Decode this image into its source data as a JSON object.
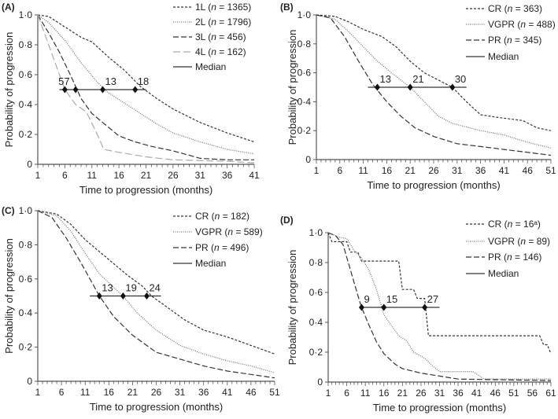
{
  "chart_data": [
    {
      "type": "line",
      "panel": "(A)",
      "xlabel": "Time to progression (months)",
      "ylabel": "Probability of progression",
      "xlim": [
        1,
        41
      ],
      "ylim": [
        0,
        1
      ],
      "xticks": [
        1,
        6,
        11,
        16,
        21,
        26,
        31,
        36,
        41
      ],
      "yticks": [
        "0",
        "0·2",
        "0·4",
        "0·6",
        "0·8",
        "1·0"
      ],
      "series": [
        {
          "name": "1L",
          "n": "1365",
          "style": "short-dash",
          "color": "#333333",
          "points": [
            [
              1,
              1
            ],
            [
              3,
              0.99
            ],
            [
              6,
              0.92
            ],
            [
              9,
              0.85
            ],
            [
              11,
              0.82
            ],
            [
              14,
              0.72
            ],
            [
              17,
              0.63
            ],
            [
              20,
              0.52
            ],
            [
              23,
              0.44
            ],
            [
              26,
              0.37
            ],
            [
              31,
              0.28
            ],
            [
              36,
              0.21
            ],
            [
              41,
              0.15
            ]
          ]
        },
        {
          "name": "2L",
          "n": "1796",
          "style": "dotted",
          "color": "#777777",
          "points": [
            [
              1,
              1
            ],
            [
              3,
              0.95
            ],
            [
              6,
              0.83
            ],
            [
              9,
              0.68
            ],
            [
              12,
              0.55
            ],
            [
              14,
              0.48
            ],
            [
              17,
              0.41
            ],
            [
              20,
              0.34
            ],
            [
              23,
              0.27
            ],
            [
              26,
              0.21
            ],
            [
              31,
              0.15
            ],
            [
              36,
              0.1
            ],
            [
              41,
              0.07
            ]
          ]
        },
        {
          "name": "3L",
          "n": "456",
          "style": "dash",
          "color": "#333333",
          "points": [
            [
              1,
              1
            ],
            [
              3,
              0.88
            ],
            [
              5,
              0.75
            ],
            [
              7,
              0.6
            ],
            [
              9,
              0.44
            ],
            [
              11,
              0.34
            ],
            [
              13,
              0.28
            ],
            [
              16,
              0.19
            ],
            [
              19,
              0.15
            ],
            [
              22,
              0.12
            ],
            [
              26,
              0.09
            ],
            [
              31,
              0.04
            ],
            [
              36,
              0.03
            ],
            [
              41,
              0.03
            ]
          ]
        },
        {
          "name": "4L",
          "n": "162",
          "style": "long-dash",
          "color": "#aaaaaa",
          "points": [
            [
              1,
              1
            ],
            [
              3,
              0.8
            ],
            [
              5,
              0.6
            ],
            [
              6,
              0.5
            ],
            [
              8,
              0.4
            ],
            [
              10,
              0.35
            ],
            [
              12,
              0.2
            ],
            [
              13.2,
              0.1
            ],
            [
              16,
              0.08
            ],
            [
              21,
              0.05
            ],
            [
              26,
              0.03
            ],
            [
              36,
              0.02
            ],
            [
              41,
              0.01
            ]
          ]
        }
      ],
      "median": {
        "label": "Median",
        "range": [
          5,
          21
        ],
        "markers": [
          6,
          8,
          13,
          19
        ],
        "labels": [
          {
            "text": "57",
            "x": 6
          },
          {
            "text": "13",
            "x": 13
          },
          {
            "text": "18",
            "x": 19
          }
        ]
      }
    },
    {
      "type": "line",
      "panel": "(B)",
      "xlabel": "Time to progression (months)",
      "ylabel": "Probability of progression",
      "xlim": [
        1,
        51
      ],
      "ylim": [
        0,
        1
      ],
      "xticks": [
        1,
        6,
        11,
        16,
        21,
        26,
        31,
        36,
        41,
        46,
        51
      ],
      "yticks": [
        "0",
        "0·2",
        "0·4",
        "0·6",
        "0·8",
        "1·0"
      ],
      "series": [
        {
          "name": "CR",
          "n": "363",
          "style": "short-dash",
          "color": "#333333",
          "points": [
            [
              1,
              1
            ],
            [
              5,
              0.99
            ],
            [
              8,
              0.95
            ],
            [
              11,
              0.9
            ],
            [
              15,
              0.85
            ],
            [
              18,
              0.78
            ],
            [
              21,
              0.68
            ],
            [
              24,
              0.6
            ],
            [
              27,
              0.55
            ],
            [
              30,
              0.5
            ],
            [
              33,
              0.4
            ],
            [
              36,
              0.31
            ],
            [
              40,
              0.29
            ],
            [
              45,
              0.27
            ],
            [
              48,
              0.22
            ],
            [
              51,
              0.2
            ]
          ]
        },
        {
          "name": "VGPR",
          "n": "488",
          "style": "dotted",
          "color": "#777777",
          "points": [
            [
              1,
              1
            ],
            [
              5,
              0.97
            ],
            [
              8,
              0.88
            ],
            [
              11,
              0.78
            ],
            [
              14,
              0.68
            ],
            [
              17,
              0.6
            ],
            [
              21,
              0.5
            ],
            [
              24,
              0.4
            ],
            [
              27,
              0.3
            ],
            [
              30,
              0.25
            ],
            [
              36,
              0.2
            ],
            [
              41,
              0.17
            ],
            [
              46,
              0.12
            ],
            [
              51,
              0.08
            ]
          ]
        },
        {
          "name": "PR",
          "n": "345",
          "style": "dash",
          "color": "#333333",
          "points": [
            [
              1,
              1
            ],
            [
              4,
              0.98
            ],
            [
              7,
              0.85
            ],
            [
              10,
              0.68
            ],
            [
              13,
              0.52
            ],
            [
              16,
              0.4
            ],
            [
              19,
              0.3
            ],
            [
              22,
              0.22
            ],
            [
              26,
              0.16
            ],
            [
              31,
              0.11
            ],
            [
              36,
              0.09
            ],
            [
              41,
              0.07
            ],
            [
              46,
              0.05
            ],
            [
              51,
              0.03
            ]
          ]
        }
      ],
      "median": {
        "label": "Median",
        "range": [
          12,
          33
        ],
        "markers": [
          14,
          21,
          30
        ],
        "labels": [
          {
            "text": "13",
            "x": 14
          },
          {
            "text": "21",
            "x": 21
          },
          {
            "text": "30",
            "x": 30
          }
        ]
      }
    },
    {
      "type": "line",
      "panel": "(C)",
      "xlabel": "Time to progression (months)",
      "ylabel": "Probability of progression",
      "xlim": [
        1,
        51
      ],
      "ylim": [
        0,
        1
      ],
      "xticks": [
        1,
        6,
        11,
        16,
        21,
        26,
        31,
        36,
        41,
        46,
        51
      ],
      "yticks": [
        "0",
        "0·2",
        "0·4",
        "0·6",
        "0·8",
        "1·0"
      ],
      "series": [
        {
          "name": "CR",
          "n": "182",
          "style": "short-dash",
          "color": "#333333",
          "points": [
            [
              1,
              1
            ],
            [
              5,
              0.98
            ],
            [
              8,
              0.92
            ],
            [
              11,
              0.83
            ],
            [
              14,
              0.76
            ],
            [
              17,
              0.69
            ],
            [
              20,
              0.62
            ],
            [
              23,
              0.56
            ],
            [
              25,
              0.5
            ],
            [
              28,
              0.44
            ],
            [
              32,
              0.36
            ],
            [
              36,
              0.3
            ],
            [
              41,
              0.26
            ],
            [
              46,
              0.21
            ],
            [
              51,
              0.16
            ]
          ]
        },
        {
          "name": "VGPR",
          "n": "589",
          "style": "dotted",
          "color": "#777777",
          "points": [
            [
              1,
              1
            ],
            [
              5,
              0.97
            ],
            [
              8,
              0.88
            ],
            [
              11,
              0.75
            ],
            [
              14,
              0.63
            ],
            [
              17,
              0.55
            ],
            [
              19,
              0.5
            ],
            [
              22,
              0.4
            ],
            [
              26,
              0.3
            ],
            [
              31,
              0.21
            ],
            [
              36,
              0.16
            ],
            [
              41,
              0.12
            ],
            [
              46,
              0.09
            ],
            [
              51,
              0.05
            ]
          ]
        },
        {
          "name": "PR",
          "n": "496",
          "style": "dash",
          "color": "#333333",
          "points": [
            [
              1,
              1
            ],
            [
              4,
              0.96
            ],
            [
              7,
              0.84
            ],
            [
              10,
              0.7
            ],
            [
              14,
              0.5
            ],
            [
              17,
              0.38
            ],
            [
              21,
              0.27
            ],
            [
              26,
              0.17
            ],
            [
              31,
              0.13
            ],
            [
              36,
              0.09
            ],
            [
              41,
              0.06
            ],
            [
              46,
              0.04
            ],
            [
              51,
              0.02
            ]
          ]
        }
      ],
      "median": {
        "label": "Median",
        "range": [
          12,
          27
        ],
        "markers": [
          14,
          19,
          24
        ],
        "labels": [
          {
            "text": "13",
            "x": 14
          },
          {
            "text": "19",
            "x": 19
          },
          {
            "text": "24",
            "x": 24
          }
        ]
      }
    },
    {
      "type": "line",
      "panel": "(D)",
      "xlabel": "Time to progression (months)",
      "ylabel": "Probability of progression",
      "xlim": [
        1,
        61
      ],
      "ylim": [
        0,
        1
      ],
      "xticks": [
        1,
        6,
        11,
        16,
        21,
        26,
        31,
        36,
        41,
        46,
        51,
        56,
        61
      ],
      "yticks": [
        "0",
        "0·2",
        "0·4",
        "0·6",
        "0·8",
        "1·0"
      ],
      "series": [
        {
          "name": "CR",
          "n": "16ᵃ",
          "style": "short-dash",
          "color": "#333333",
          "points": [
            [
              1,
              1
            ],
            [
              2,
              0.94
            ],
            [
              6,
              0.94
            ],
            [
              7,
              0.87
            ],
            [
              9,
              0.87
            ],
            [
              10,
              0.81
            ],
            [
              20,
              0.81
            ],
            [
              21,
              0.62
            ],
            [
              24,
              0.62
            ],
            [
              25,
              0.56
            ],
            [
              27,
              0.56
            ],
            [
              28,
              0.31
            ],
            [
              58,
              0.31
            ],
            [
              59,
              0.25
            ],
            [
              60,
              0.25
            ],
            [
              61,
              0.19
            ]
          ]
        },
        {
          "name": "VGPR",
          "n": "89",
          "style": "dotted",
          "color": "#777777",
          "points": [
            [
              1,
              1
            ],
            [
              4,
              0.97
            ],
            [
              6,
              0.96
            ],
            [
              8,
              0.88
            ],
            [
              10,
              0.83
            ],
            [
              12,
              0.75
            ],
            [
              14,
              0.62
            ],
            [
              16,
              0.45
            ],
            [
              18,
              0.38
            ],
            [
              20,
              0.31
            ],
            [
              22,
              0.28
            ],
            [
              24,
              0.2
            ],
            [
              27,
              0.16
            ],
            [
              29,
              0.11
            ],
            [
              31,
              0.07
            ],
            [
              40,
              0.07
            ],
            [
              43,
              0.02
            ],
            [
              61,
              0.02
            ]
          ]
        },
        {
          "name": "PR",
          "n": "146",
          "style": "dash",
          "color": "#333333",
          "points": [
            [
              1,
              1
            ],
            [
              3,
              0.98
            ],
            [
              5,
              0.92
            ],
            [
              7,
              0.75
            ],
            [
              9,
              0.58
            ],
            [
              10,
              0.5
            ],
            [
              12,
              0.38
            ],
            [
              14,
              0.27
            ],
            [
              16,
              0.19
            ],
            [
              19,
              0.12
            ],
            [
              21,
              0.09
            ],
            [
              26,
              0.06
            ],
            [
              31,
              0.04
            ],
            [
              36,
              0.02
            ],
            [
              61,
              0.01
            ]
          ]
        }
      ],
      "median": {
        "label": "Median",
        "range": [
          10,
          31
        ],
        "markers": [
          10,
          16,
          27
        ],
        "labels": [
          {
            "text": "9",
            "x": 10
          },
          {
            "text": "15",
            "x": 16
          },
          {
            "text": "27",
            "x": 27
          }
        ]
      }
    }
  ]
}
